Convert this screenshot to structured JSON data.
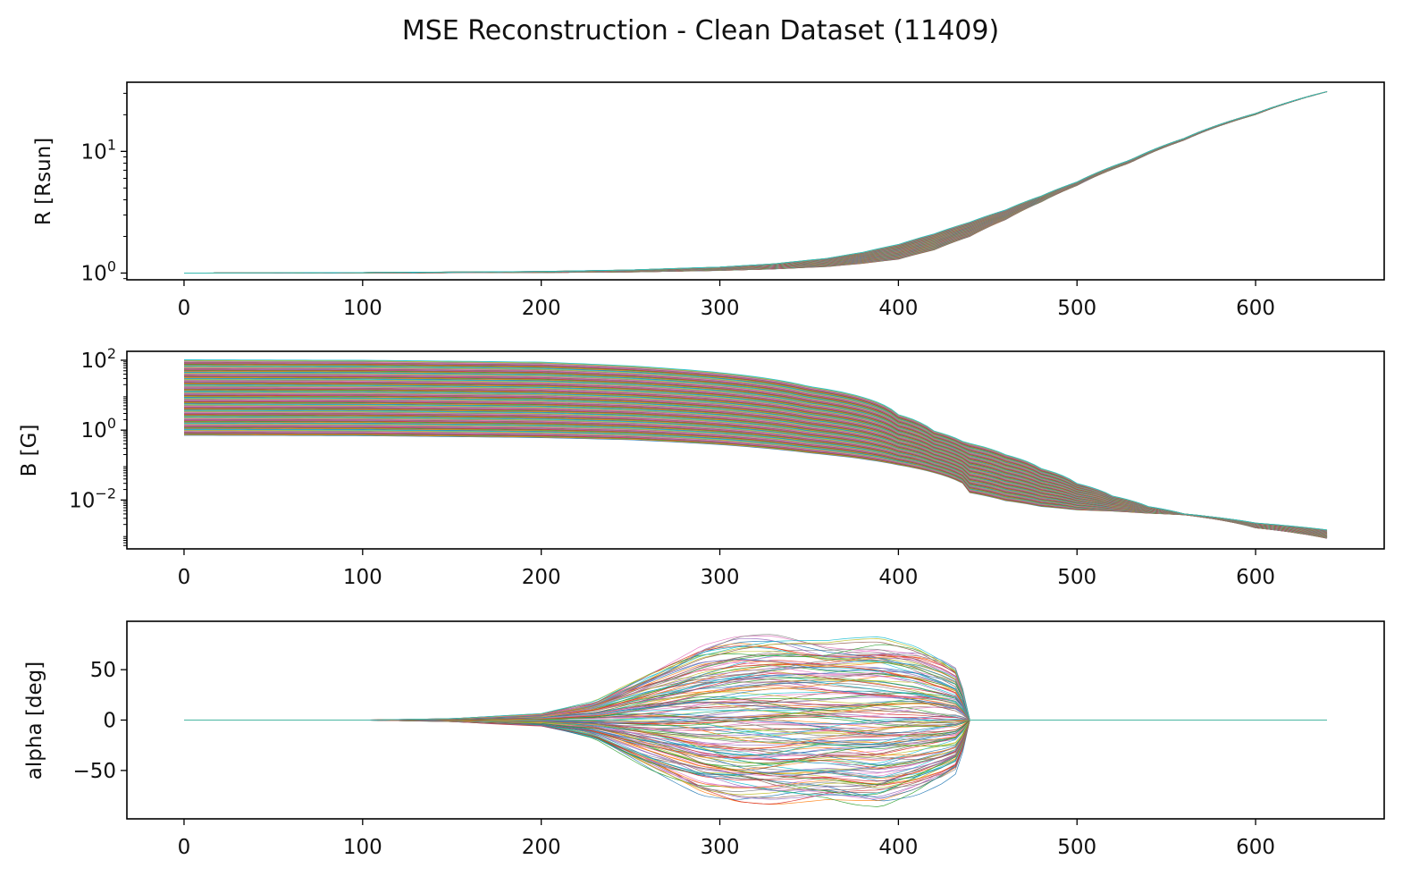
{
  "title": "MSE Reconstruction - Clean Dataset (11409)",
  "chart_data": [
    {
      "type": "line",
      "ylabel": "R [Rsun]",
      "yscale": "log",
      "xlim": [
        -32,
        672
      ],
      "ylim": [
        0.88,
        37
      ],
      "xticks": [
        0,
        100,
        200,
        300,
        400,
        500,
        600
      ],
      "yticks": [
        {
          "value": 1,
          "base": "10",
          "exp": "0"
        },
        {
          "value": 10,
          "base": "10",
          "exp": "1"
        }
      ],
      "series_count_shown": 11409,
      "envelope": {
        "x": [
          0,
          100,
          200,
          250,
          300,
          330,
          360,
          380,
          400,
          420,
          440,
          460,
          480,
          500,
          530,
          560,
          600,
          640
        ],
        "upper": [
          1.0,
          1.01,
          1.03,
          1.06,
          1.12,
          1.19,
          1.32,
          1.48,
          1.72,
          2.1,
          2.62,
          3.3,
          4.3,
          5.6,
          8.5,
          12.8,
          20.5,
          31
        ],
        "median": [
          1.0,
          1.01,
          1.02,
          1.04,
          1.09,
          1.14,
          1.24,
          1.36,
          1.55,
          1.88,
          2.4,
          3.15,
          4.15,
          5.45,
          8.3,
          12.6,
          20.3,
          31
        ],
        "lower": [
          1.0,
          1.0,
          1.01,
          1.02,
          1.05,
          1.08,
          1.13,
          1.2,
          1.3,
          1.55,
          2.0,
          2.75,
          3.85,
          5.25,
          8.1,
          12.4,
          20.1,
          31
        ]
      }
    },
    {
      "type": "line",
      "ylabel": "B [G]",
      "yscale": "log",
      "xlim": [
        -32,
        672
      ],
      "ylim": [
        0.0004,
        180
      ],
      "xticks": [
        0,
        100,
        200,
        300,
        400,
        500,
        600
      ],
      "yticks": [
        {
          "value": 0.01,
          "base": "10",
          "exp": "−2"
        },
        {
          "value": 1,
          "base": "10",
          "exp": "0"
        },
        {
          "value": 100,
          "base": "10",
          "exp": "2"
        }
      ],
      "series_count_shown": 11409,
      "envelope": {
        "x": [
          0,
          100,
          200,
          250,
          300,
          350,
          400,
          420,
          436,
          440,
          460,
          480,
          500,
          520,
          540,
          560,
          600,
          640
        ],
        "upper": [
          105,
          102,
          90,
          70,
          45,
          18,
          2.8,
          0.95,
          0.48,
          0.42,
          0.2,
          0.08,
          0.03,
          0.013,
          0.0065,
          0.004,
          0.0022,
          0.0014
        ],
        "median": [
          8,
          7.5,
          6.5,
          5.5,
          4,
          2.2,
          0.7,
          0.32,
          0.14,
          0.08,
          0.035,
          0.015,
          0.008,
          0.0055,
          0.0048,
          0.004,
          0.0019,
          0.0011
        ],
        "lower": [
          0.7,
          0.68,
          0.6,
          0.52,
          0.38,
          0.22,
          0.1,
          0.06,
          0.03,
          0.016,
          0.0095,
          0.0065,
          0.0052,
          0.0048,
          0.0042,
          0.0038,
          0.0016,
          0.0008
        ]
      }
    },
    {
      "type": "line",
      "ylabel": "alpha [deg]",
      "yscale": "linear",
      "xlim": [
        -32,
        672
      ],
      "ylim": [
        -98,
        98
      ],
      "xticks": [
        0,
        100,
        200,
        300,
        400,
        500,
        600
      ],
      "yticks": [
        {
          "value": 50,
          "text": "50"
        },
        {
          "value": 0,
          "text": "0"
        },
        {
          "value": -50,
          "text": "−50"
        }
      ],
      "series_count_shown": 11409,
      "envelope": {
        "x": [
          0,
          100,
          150,
          200,
          230,
          260,
          290,
          310,
          330,
          360,
          390,
          410,
          425,
          432,
          436,
          440,
          640
        ],
        "upper": [
          0,
          0,
          1.5,
          6,
          18,
          45,
          70,
          78,
          80,
          75,
          77,
          70,
          58,
          50,
          30,
          0,
          0
        ],
        "lower": [
          0,
          0,
          -1.5,
          -6,
          -18,
          -45,
          -70,
          -78,
          -80,
          -76,
          -80,
          -70,
          -58,
          -50,
          -30,
          0,
          0
        ]
      }
    }
  ]
}
